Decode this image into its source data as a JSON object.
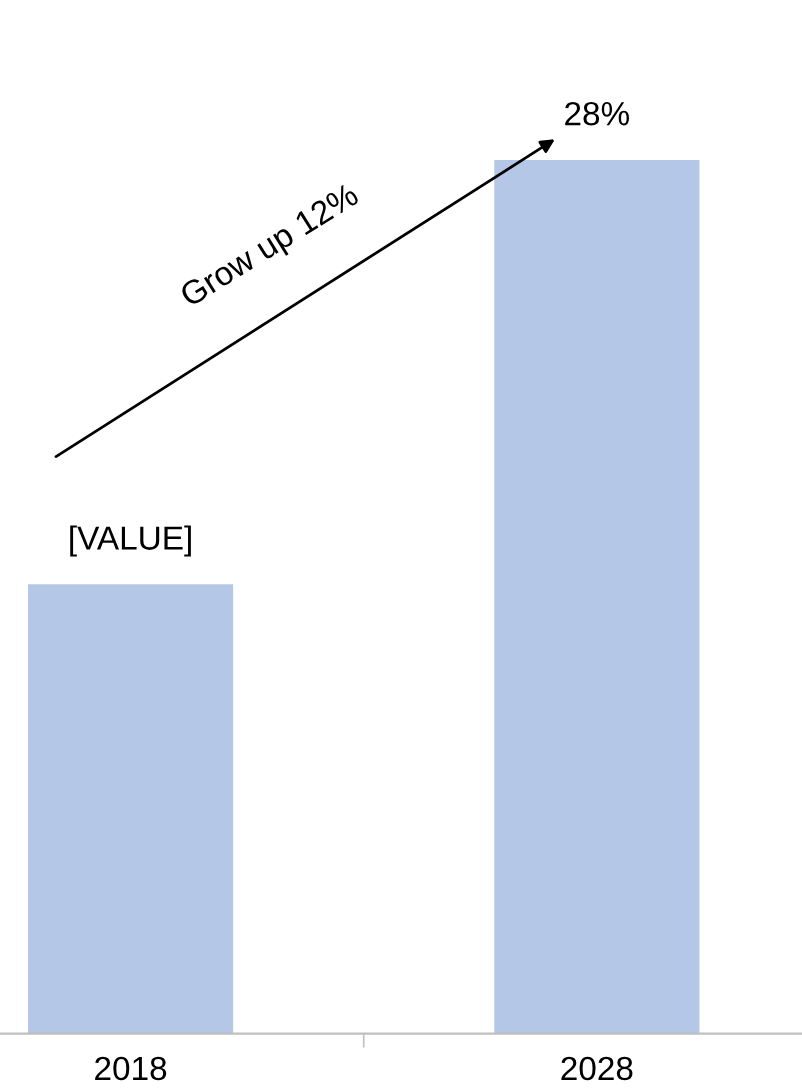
{
  "chart_data": {
    "type": "bar",
    "categories": [
      "2018",
      "2028"
    ],
    "values": [
      14.4,
      28
    ],
    "value_labels": [
      "[VALUE]",
      "28%"
    ],
    "color": "#b4c7e7",
    "annotations": [
      "Grow up 12%"
    ],
    "grid": false,
    "legend": false
  }
}
